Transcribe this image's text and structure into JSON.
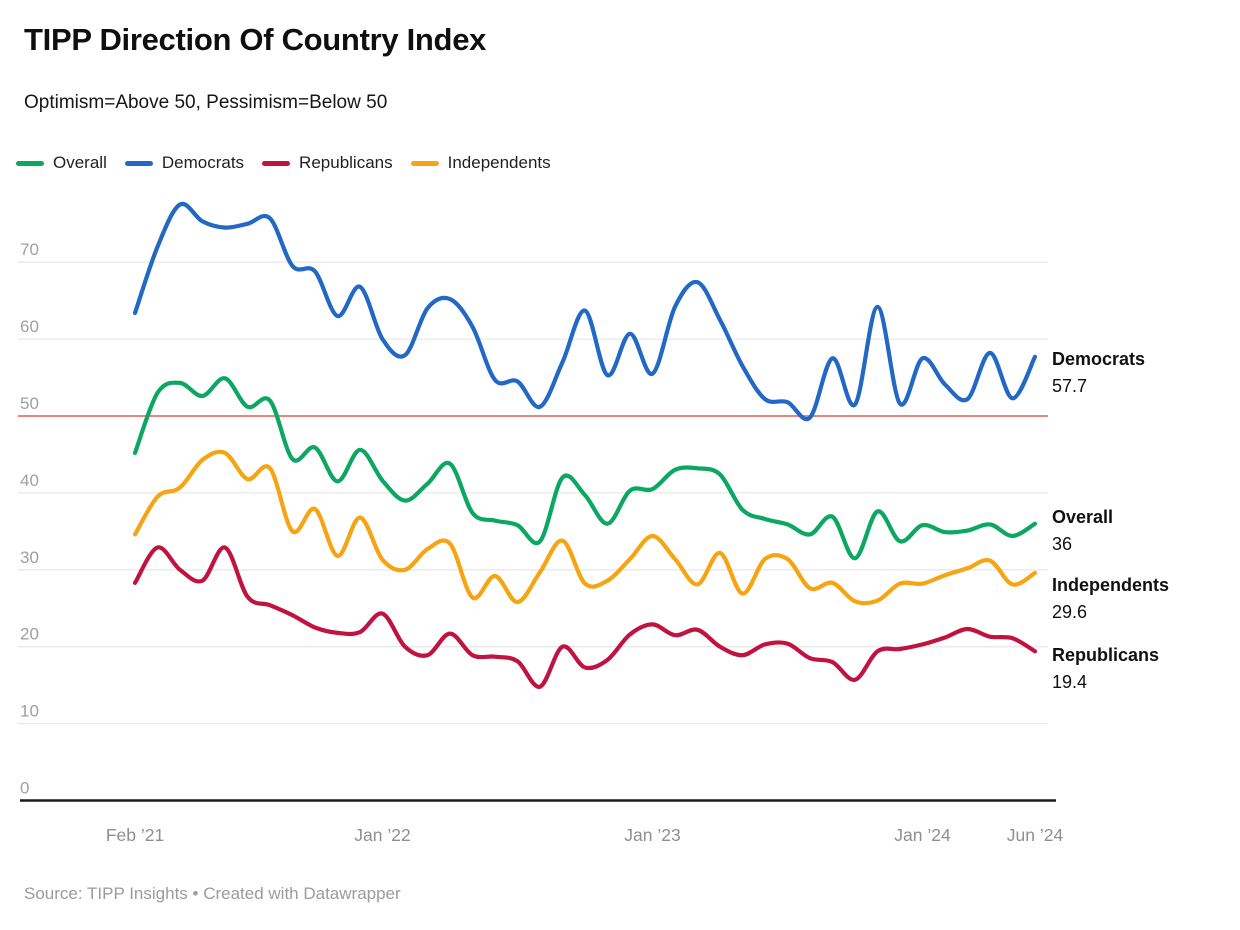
{
  "header": {
    "title": "TIPP Direction Of Country Index",
    "subtitle": "Optimism=Above 50, Pessimism=Below 50"
  },
  "footer": {
    "source": "Source: TIPP Insights • Created with Datawrapper"
  },
  "colors": {
    "background": "#ffffff",
    "gridline": "#e9e9e9",
    "baseline": "#1a1a1a",
    "tick_text": "#a0a0a0",
    "reference_line": "#e9867d"
  },
  "chart_data": {
    "type": "line",
    "title": "TIPP Direction Of Country Index",
    "subtitle": "Optimism=Above 50, Pessimism=Below 50",
    "ylim": [
      0,
      78
    ],
    "grid": "horizontal",
    "legend_position": "top",
    "y_ticks": [
      0,
      10,
      20,
      30,
      40,
      50,
      60,
      70
    ],
    "reference_line": {
      "value": 50,
      "color": "#e9867d"
    },
    "x_tick_labels": [
      {
        "label": "Feb ’21",
        "index": 0
      },
      {
        "label": "Jan ’22",
        "index": 11
      },
      {
        "label": "Jan ’23",
        "index": 23
      },
      {
        "label": "Jan ’24",
        "index": 35
      },
      {
        "label": "Jun ’24",
        "index": 40
      }
    ],
    "x_months": [
      "Feb 2021",
      "Mar 2021",
      "Apr 2021",
      "May 2021",
      "Jun 2021",
      "Jul 2021",
      "Aug 2021",
      "Sep 2021",
      "Oct 2021",
      "Nov 2021",
      "Dec 2021",
      "Jan 2022",
      "Feb 2022",
      "Mar 2022",
      "Apr 2022",
      "May 2022",
      "Jun 2022",
      "Jul 2022",
      "Aug 2022",
      "Sep 2022",
      "Oct 2022",
      "Nov 2022",
      "Dec 2022",
      "Jan 2023",
      "Feb 2023",
      "Mar 2023",
      "Apr 2023",
      "May 2023",
      "Jun 2023",
      "Jul 2023",
      "Aug 2023",
      "Sep 2023",
      "Oct 2023",
      "Nov 2023",
      "Dec 2023",
      "Jan 2024",
      "Feb 2024",
      "Mar 2024",
      "Apr 2024",
      "May 2024",
      "Jun 2024"
    ],
    "series": [
      {
        "name": "Overall",
        "color": "#0ca763",
        "end_label": "36",
        "values": [
          45.2,
          53,
          54.3,
          52.6,
          54.9,
          51.2,
          52,
          44.4,
          45.9,
          41.5,
          45.6,
          41.6,
          39,
          41.2,
          43.8,
          37.4,
          36.4,
          35.8,
          33.7,
          42,
          39.7,
          36,
          40.3,
          40.5,
          43,
          43.2,
          42.4,
          37.8,
          36.6,
          35.9,
          34.6,
          36.9,
          31.5,
          37.6,
          33.7,
          35.8,
          34.9,
          35.1,
          35.9,
          34.4,
          36
        ]
      },
      {
        "name": "Democrats",
        "color": "#2368c4",
        "end_label": "57.7",
        "values": [
          63.4,
          72,
          77.5,
          75.3,
          74.5,
          75,
          75.7,
          69.5,
          68.8,
          63,
          66.8,
          60,
          57.9,
          64,
          65.2,
          61.6,
          54.7,
          54.5,
          51.2,
          57,
          63.7,
          55.3,
          60.7,
          55.5,
          64.2,
          67.4,
          62.5,
          56.5,
          52.2,
          51.8,
          49.8,
          57.5,
          51.5,
          64.2,
          51.6,
          57.5,
          54.1,
          52.2,
          58.2,
          52.3,
          57.7
        ]
      },
      {
        "name": "Republicans",
        "color": "#c01340",
        "end_label": "19.4",
        "values": [
          28.3,
          32.9,
          30,
          28.6,
          32.9,
          26.5,
          25.4,
          24.1,
          22.5,
          21.8,
          21.9,
          24.3,
          20,
          18.9,
          21.7,
          18.9,
          18.7,
          18.1,
          14.8,
          20,
          17.3,
          18.3,
          21.6,
          22.9,
          21.5,
          22.2,
          20,
          18.9,
          20.3,
          20.4,
          18.5,
          18,
          15.7,
          19.4,
          19.7,
          20.3,
          21.2,
          22.3,
          21.3,
          21.1,
          19.4
        ]
      },
      {
        "name": "Independents",
        "color": "#f7a412",
        "end_label": "29.6",
        "values": [
          34.6,
          39.5,
          40.7,
          44.3,
          45.2,
          41.8,
          43.2,
          35,
          37.9,
          31.8,
          36.8,
          31.3,
          30,
          32.7,
          33.4,
          26.4,
          29.2,
          25.8,
          29.7,
          33.8,
          28.2,
          28.6,
          31.4,
          34.4,
          31.4,
          28.1,
          32.2,
          26.9,
          31.4,
          31.4,
          27.6,
          28.3,
          25.9,
          26,
          28.2,
          28.2,
          29.3,
          30.2,
          31.2,
          28.1,
          29.6
        ]
      }
    ]
  }
}
